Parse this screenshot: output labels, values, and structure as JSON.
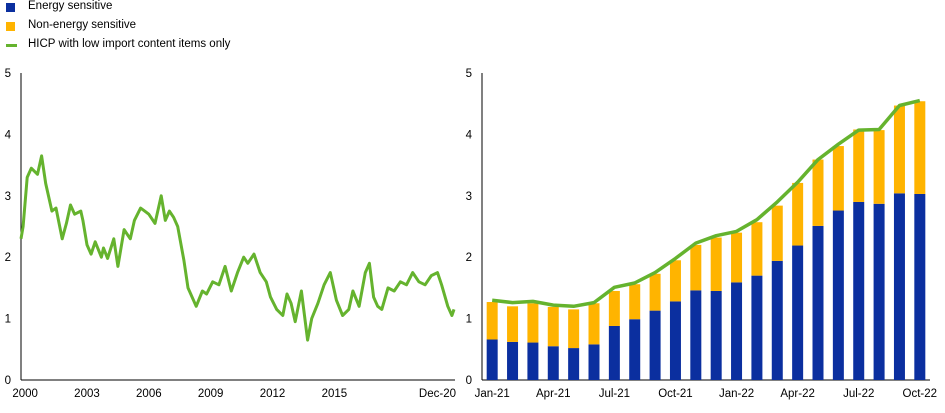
{
  "legend": [
    {
      "label": "Energy sensitive",
      "color": "#0b2f9f",
      "kind": "box"
    },
    {
      "label": "Non-energy sensitive",
      "color": "#ffb400",
      "kind": "box"
    },
    {
      "label": "HICP with low import content items only",
      "color": "#65b32e",
      "kind": "line"
    }
  ],
  "chart_data": [
    {
      "type": "line",
      "series": [
        {
          "name": "HICP with low import content items only",
          "color": "#65b32e",
          "x": [
            2000.0,
            2000.1,
            2000.3,
            2000.5,
            2000.8,
            2001.0,
            2001.2,
            2001.5,
            2001.7,
            2002.0,
            2002.2,
            2002.4,
            2002.6,
            2002.9,
            2003.0,
            2003.2,
            2003.4,
            2003.6,
            2003.9,
            2004.0,
            2004.2,
            2004.5,
            2004.7,
            2005.0,
            2005.3,
            2005.5,
            2005.8,
            2006.0,
            2006.2,
            2006.5,
            2006.8,
            2007.0,
            2007.2,
            2007.4,
            2007.6,
            2007.9,
            2008.1,
            2008.5,
            2008.8,
            2009.0,
            2009.3,
            2009.6,
            2009.9,
            2010.2,
            2010.5,
            2010.8,
            2011.0,
            2011.3,
            2011.6,
            2011.9,
            2012.1,
            2012.4,
            2012.7,
            2012.9,
            2013.1,
            2013.3,
            2013.6,
            2013.9,
            2014.1,
            2014.4,
            2014.7,
            2015.0,
            2015.3,
            2015.6,
            2015.9,
            2016.1,
            2016.4,
            2016.7,
            2016.9,
            2017.1,
            2017.3,
            2017.5,
            2017.8,
            2018.1,
            2018.4,
            2018.7,
            2019.0,
            2019.3,
            2019.6,
            2019.9,
            2020.2,
            2020.4,
            2020.7,
            2020.9,
            2021.0
          ],
          "values": [
            2.3,
            2.5,
            3.3,
            3.45,
            3.35,
            3.65,
            3.2,
            2.75,
            2.8,
            2.3,
            2.55,
            2.85,
            2.7,
            2.75,
            2.6,
            2.2,
            2.05,
            2.25,
            2.0,
            2.15,
            1.98,
            2.3,
            1.85,
            2.45,
            2.3,
            2.6,
            2.8,
            2.75,
            2.7,
            2.55,
            3.0,
            2.6,
            2.75,
            2.65,
            2.5,
            1.95,
            1.5,
            1.2,
            1.45,
            1.4,
            1.6,
            1.55,
            1.85,
            1.45,
            1.75,
            2.0,
            1.9,
            2.05,
            1.75,
            1.6,
            1.35,
            1.15,
            1.05,
            1.4,
            1.25,
            0.95,
            1.45,
            0.65,
            1.0,
            1.25,
            1.55,
            1.75,
            1.3,
            1.05,
            1.15,
            1.45,
            1.2,
            1.75,
            1.9,
            1.35,
            1.2,
            1.15,
            1.5,
            1.45,
            1.6,
            1.55,
            1.75,
            1.6,
            1.55,
            1.7,
            1.75,
            1.55,
            1.2,
            1.05,
            1.15
          ]
        }
      ],
      "xlim": [
        2000,
        2021.05
      ],
      "ylim": [
        0,
        5
      ],
      "yticks": [
        0,
        1,
        2,
        3,
        4,
        5
      ],
      "xtick_labels": [
        {
          "x": 2000.2,
          "label": "2000"
        },
        {
          "x": 2003.2,
          "label": "2003"
        },
        {
          "x": 2006.2,
          "label": "2006"
        },
        {
          "x": 2009.2,
          "label": "2009"
        },
        {
          "x": 2012.2,
          "label": "2012"
        },
        {
          "x": 2015.2,
          "label": "2015"
        },
        {
          "x": 2020.2,
          "label": "Dec-20"
        }
      ],
      "grid": false
    },
    {
      "type": "bar",
      "stacked": true,
      "categories": [
        "Jan-21",
        "Feb-21",
        "Mar-21",
        "Apr-21",
        "May-21",
        "Jun-21",
        "Jul-21",
        "Aug-21",
        "Sep-21",
        "Oct-21",
        "Nov-21",
        "Dec-21",
        "Jan-22",
        "Feb-22",
        "Mar-22",
        "Apr-22",
        "May-22",
        "Jun-22",
        "Jul-22",
        "Aug-22",
        "Sep-22",
        "Oct-22"
      ],
      "series": [
        {
          "name": "Energy sensitive",
          "color": "#0b2f9f",
          "values": [
            0.66,
            0.62,
            0.61,
            0.55,
            0.52,
            0.58,
            0.88,
            0.99,
            1.13,
            1.28,
            1.46,
            1.45,
            1.59,
            1.7,
            1.94,
            2.19,
            2.51,
            2.76,
            2.9,
            2.87,
            3.04,
            3.03
          ]
        },
        {
          "name": "Non-energy sensitive",
          "color": "#ffb400",
          "values": [
            0.61,
            0.58,
            0.64,
            0.64,
            0.63,
            0.67,
            0.57,
            0.57,
            0.6,
            0.67,
            0.74,
            0.87,
            0.81,
            0.87,
            0.9,
            1.02,
            1.08,
            1.05,
            1.18,
            1.2,
            1.43,
            1.51
          ]
        },
        {
          "name": "HICP with low import content items only",
          "color": "#65b32e",
          "type": "line",
          "values": [
            1.3,
            1.26,
            1.28,
            1.22,
            1.2,
            1.26,
            1.51,
            1.58,
            1.75,
            1.98,
            2.23,
            2.35,
            2.42,
            2.61,
            2.9,
            3.22,
            3.59,
            3.84,
            4.07,
            4.08,
            4.47,
            4.55
          ]
        }
      ],
      "xtick_labels": [
        {
          "index": 0,
          "label": "Jan-21"
        },
        {
          "index": 3,
          "label": "Apr-21"
        },
        {
          "index": 6,
          "label": "Jul-21"
        },
        {
          "index": 9,
          "label": "Oct-21"
        },
        {
          "index": 12,
          "label": "Jan-22"
        },
        {
          "index": 15,
          "label": "Apr-22"
        },
        {
          "index": 18,
          "label": "Jul-22"
        },
        {
          "index": 21,
          "label": "Oct-22"
        }
      ],
      "ylim": [
        0,
        5
      ],
      "yticks": [
        0,
        1,
        2,
        3,
        4,
        5
      ],
      "grid": false
    }
  ]
}
